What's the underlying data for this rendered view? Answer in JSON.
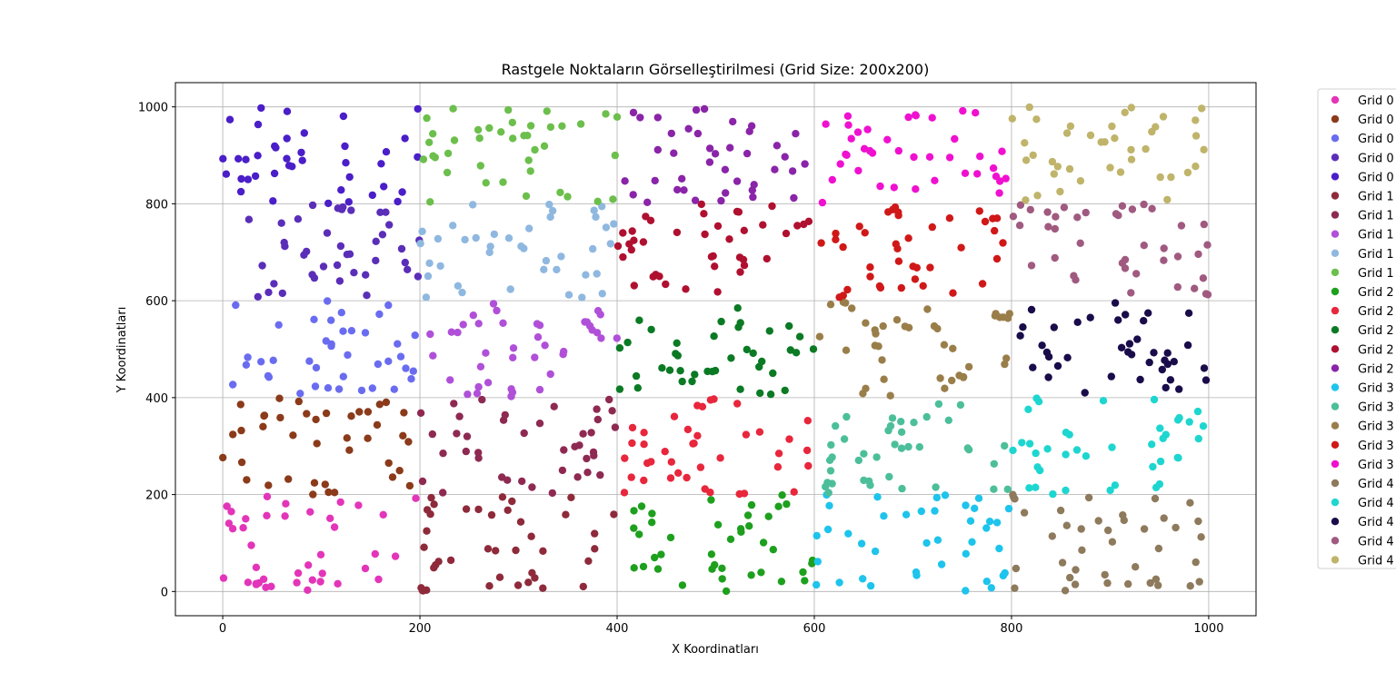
{
  "chart_data": {
    "type": "scatter",
    "title": "Rastgele Noktaların Görselleştirilmesi (Grid Size: 200x200)",
    "xlabel": "X Koordinatları",
    "ylabel": "Y Koordinatları",
    "xlim": [
      -48,
      1048
    ],
    "ylim": [
      -50,
      1050
    ],
    "xticks": [
      0,
      200,
      400,
      600,
      800,
      1000
    ],
    "yticks": [
      0,
      200,
      400,
      600,
      800,
      1000
    ],
    "grid": true,
    "legend_position": "outside-right",
    "points_per_cell": 40,
    "series": [
      {
        "name": "Grid 0",
        "color": "#e335b9",
        "cell": [
          0,
          0
        ]
      },
      {
        "name": "Grid 0",
        "color": "#8b3a1a",
        "cell": [
          0,
          1
        ]
      },
      {
        "name": "Grid 0",
        "color": "#6a6cf0",
        "cell": [
          0,
          2
        ]
      },
      {
        "name": "Grid 0",
        "color": "#5a2eb8",
        "cell": [
          0,
          3
        ]
      },
      {
        "name": "Grid 0",
        "color": "#4a1ec8",
        "cell": [
          0,
          4
        ]
      },
      {
        "name": "Grid 1",
        "color": "#8e2a3a",
        "cell": [
          1,
          0
        ]
      },
      {
        "name": "Grid 1",
        "color": "#8e2a52",
        "cell": [
          1,
          1
        ]
      },
      {
        "name": "Grid 1",
        "color": "#b050d8",
        "cell": [
          1,
          2
        ]
      },
      {
        "name": "Grid 1",
        "color": "#8fb8e0",
        "cell": [
          1,
          3
        ]
      },
      {
        "name": "Grid 1",
        "color": "#6cbf4c",
        "cell": [
          1,
          4
        ]
      },
      {
        "name": "Grid 2",
        "color": "#1ea01e",
        "cell": [
          2,
          0
        ]
      },
      {
        "name": "Grid 2",
        "color": "#e8263c",
        "cell": [
          2,
          1
        ]
      },
      {
        "name": "Grid 2",
        "color": "#0b7a24",
        "cell": [
          2,
          2
        ]
      },
      {
        "name": "Grid 2",
        "color": "#b01030",
        "cell": [
          2,
          3
        ]
      },
      {
        "name": "Grid 2",
        "color": "#8a24a8",
        "cell": [
          2,
          4
        ]
      },
      {
        "name": "Grid 3",
        "color": "#1ec4ec",
        "cell": [
          3,
          0
        ]
      },
      {
        "name": "Grid 3",
        "color": "#4cbf9a",
        "cell": [
          3,
          1
        ]
      },
      {
        "name": "Grid 3",
        "color": "#9a7e4a",
        "cell": [
          3,
          2
        ]
      },
      {
        "name": "Grid 3",
        "color": "#d01818",
        "cell": [
          3,
          3
        ]
      },
      {
        "name": "Grid 3",
        "color": "#f010d0",
        "cell": [
          3,
          4
        ]
      },
      {
        "name": "Grid 4",
        "color": "#8e7a5c",
        "cell": [
          4,
          0
        ]
      },
      {
        "name": "Grid 4",
        "color": "#1ed6d0",
        "cell": [
          4,
          1
        ]
      },
      {
        "name": "Grid 4",
        "color": "#1a0c4a",
        "cell": [
          4,
          2
        ]
      },
      {
        "name": "Grid 4",
        "color": "#a05a80",
        "cell": [
          4,
          3
        ]
      },
      {
        "name": "Grid 4",
        "color": "#bfb46a",
        "cell": [
          4,
          4
        ]
      }
    ]
  }
}
